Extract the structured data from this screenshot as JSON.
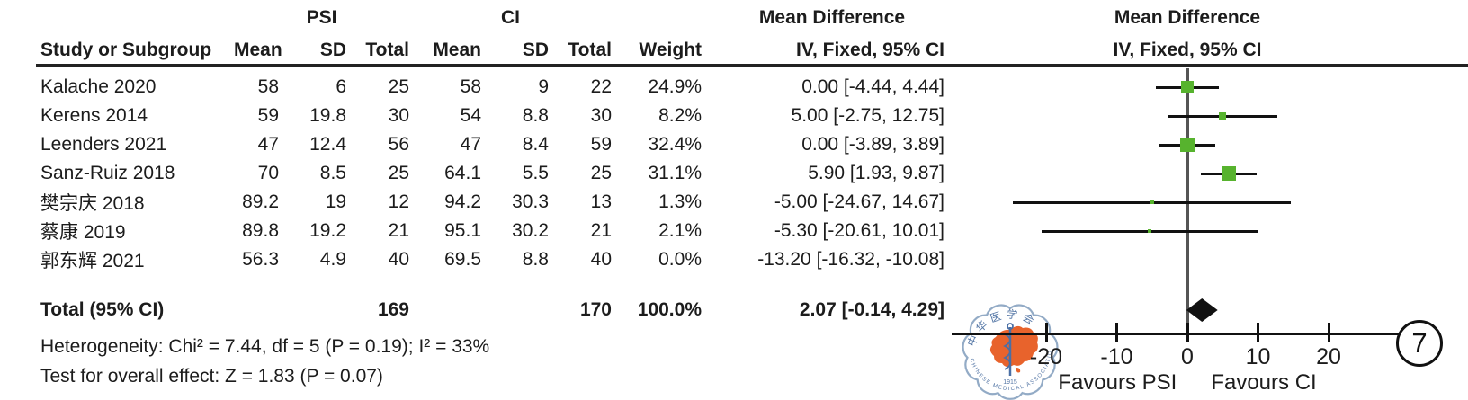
{
  "accent_colors": {
    "marker_green": "#57b32e",
    "line_black": "#111111",
    "zero_line_gray": "#555555",
    "seal_blue": "#5577a6",
    "seal_orange": "#e8632c"
  },
  "table": {
    "group1_label": "PSI",
    "group2_label": "CI",
    "headers": {
      "study": "Study or Subgroup",
      "mean1": "Mean",
      "sd1": "SD",
      "total1": "Total",
      "mean2": "Mean",
      "sd2": "SD",
      "total2": "Total",
      "weight": "Weight",
      "md_title": "Mean Difference",
      "md_subtitle": "IV, Fixed, 95% CI"
    },
    "plot_header": {
      "title": "Mean Difference",
      "subtitle": "IV, Fixed, 95% CI"
    }
  },
  "chart_data": {
    "type": "forest",
    "effect_measure": "Mean Difference, IV, Fixed, 95% CI",
    "studies": [
      {
        "name": "Kalache 2020",
        "mean1": "58",
        "sd1": "6",
        "total1": "25",
        "mean2": "58",
        "sd2": "9",
        "total2": "22",
        "weight": "24.9%",
        "md": 0.0,
        "ci_low": -4.44,
        "ci_high": 4.44,
        "md_label": "0.00 [-4.44, 4.44]"
      },
      {
        "name": "Kerens 2014",
        "mean1": "59",
        "sd1": "19.8",
        "total1": "30",
        "mean2": "54",
        "sd2": "8.8",
        "total2": "30",
        "weight": "8.2%",
        "md": 5.0,
        "ci_low": -2.75,
        "ci_high": 12.75,
        "md_label": "5.00 [-2.75, 12.75]"
      },
      {
        "name": "Leenders 2021",
        "mean1": "47",
        "sd1": "12.4",
        "total1": "56",
        "mean2": "47",
        "sd2": "8.4",
        "total2": "59",
        "weight": "32.4%",
        "md": 0.0,
        "ci_low": -3.89,
        "ci_high": 3.89,
        "md_label": "0.00 [-3.89, 3.89]"
      },
      {
        "name": "Sanz-Ruiz 2018",
        "mean1": "70",
        "sd1": "8.5",
        "total1": "25",
        "mean2": "64.1",
        "sd2": "5.5",
        "total2": "25",
        "weight": "31.1%",
        "md": 5.9,
        "ci_low": 1.93,
        "ci_high": 9.87,
        "md_label": "5.90 [1.93, 9.87]"
      },
      {
        "name": "樊宗庆 2018",
        "mean1": "89.2",
        "sd1": "19",
        "total1": "12",
        "mean2": "94.2",
        "sd2": "30.3",
        "total2": "13",
        "weight": "1.3%",
        "md": -5.0,
        "ci_low": -24.67,
        "ci_high": 14.67,
        "md_label": "-5.00 [-24.67, 14.67]"
      },
      {
        "name": "蔡康 2019",
        "mean1": "89.8",
        "sd1": "19.2",
        "total1": "21",
        "mean2": "95.1",
        "sd2": "30.2",
        "total2": "21",
        "weight": "2.1%",
        "md": -5.3,
        "ci_low": -20.61,
        "ci_high": 10.01,
        "md_label": "-5.30 [-20.61, 10.01]"
      },
      {
        "name": "郭东辉 2021",
        "mean1": "56.3",
        "sd1": "4.9",
        "total1": "40",
        "mean2": "69.5",
        "sd2": "8.8",
        "total2": "40",
        "weight": "0.0%",
        "md": -13.2,
        "ci_low": -16.32,
        "ci_high": -10.08,
        "md_label": "-13.20 [-16.32, -10.08]"
      }
    ],
    "total": {
      "label": "Total (95% CI)",
      "total1": "169",
      "total2": "170",
      "weight": "100.0%",
      "md": 2.07,
      "ci_low": -0.14,
      "ci_high": 4.29,
      "md_label": "2.07 [-0.14, 4.29]"
    },
    "heterogeneity": "Heterogeneity: Chi² = 7.44, df = 5 (P = 0.19); I² = 33%",
    "overall_effect": "Test for overall effect: Z = 1.83 (P = 0.07)",
    "axis": {
      "ticks": [
        -20,
        -10,
        0,
        10,
        20
      ],
      "favours_left": "Favours PSI",
      "favours_right": "Favours CI"
    },
    "figure_number": "7"
  },
  "seal": {
    "top_text": "中华医学会",
    "bottom_text": "CHINESE MEDICAL ASSOCIATION",
    "year": "1915"
  }
}
